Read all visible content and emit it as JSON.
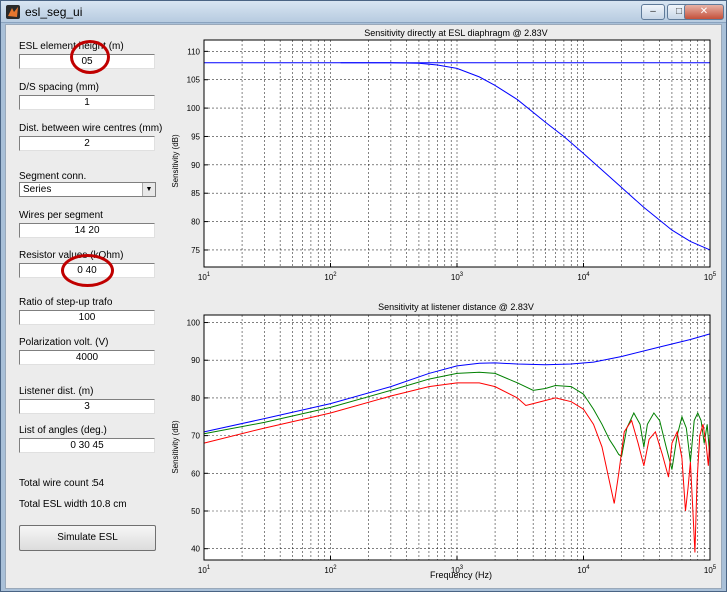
{
  "window": {
    "title": "esl_seg_ui",
    "buttons": [
      "minimize",
      "restore",
      "close"
    ]
  },
  "panel": {
    "fields": [
      {
        "key": "esl_height",
        "label": "ESL element height (m)",
        "value": "05"
      },
      {
        "key": "ds_spacing",
        "label": "D/S spacing (mm)",
        "value": "1"
      },
      {
        "key": "wire_dist",
        "label": "Dist. between wire centres (mm)",
        "value": "2"
      },
      {
        "key": "wires_per_segment",
        "label": "Wires per segment",
        "value": "14 20"
      },
      {
        "key": "resistor",
        "label": "Resistor values (kOhm)",
        "value": "0 40"
      },
      {
        "key": "trafo_ratio",
        "label": "Ratio of step-up trafo",
        "value": "100"
      },
      {
        "key": "polarization",
        "label": "Polarization volt. (V)",
        "value": "4000"
      },
      {
        "key": "listener_dist",
        "label": "Listener dist. (m)",
        "value": "3"
      },
      {
        "key": "angles",
        "label": "List of angles (deg.)",
        "value": "0 30 45"
      }
    ],
    "segment_conn": {
      "label": "Segment conn.",
      "selected": "Series"
    },
    "total_wire_count": {
      "label": "Total wire count :",
      "value": "54"
    },
    "total_esl_width": {
      "label": "Total ESL width :",
      "value": "10.8 cm"
    },
    "simulate_label": "Simulate ESL",
    "highlight_color": "#c00000"
  },
  "chart_data": [
    {
      "type": "line",
      "title": "Sensitivity directly at ESL diaphragm @ 2.83V",
      "xlabel": "",
      "ylabel": "Sensitivity (dB)",
      "xscale": "log",
      "xlim": [
        10,
        100000
      ],
      "ylim": [
        72,
        112
      ],
      "yticks": [
        75,
        80,
        85,
        90,
        95,
        100,
        105,
        110
      ],
      "xticks": [
        "10^1",
        "10^2",
        "10^3",
        "10^4",
        "10^5"
      ],
      "grid": true,
      "series": [
        {
          "color": "#0000ff",
          "points": [
            [
              10,
              108
            ],
            [
              100,
              108
            ],
            [
              1000,
              108
            ],
            [
              100000,
              108
            ]
          ]
        },
        {
          "color": "#0000ff",
          "points": [
            [
              120,
              108
            ],
            [
              300,
              108
            ],
            [
              500,
              107.9
            ],
            [
              700,
              107.6
            ],
            [
              1000,
              107
            ],
            [
              1500,
              105.5
            ],
            [
              2000,
              104
            ],
            [
              3000,
              101.5
            ],
            [
              5000,
              97.5
            ],
            [
              7000,
              95
            ],
            [
              10000,
              92
            ],
            [
              15000,
              88.5
            ],
            [
              20000,
              86
            ],
            [
              30000,
              82.5
            ],
            [
              50000,
              78.5
            ],
            [
              70000,
              76.5
            ],
            [
              100000,
              75
            ]
          ]
        }
      ]
    },
    {
      "type": "line",
      "title": "Sensitivity at listener distance @ 2.83V",
      "xlabel": "Frequency (Hz)",
      "ylabel": "Sensitivity (dB)",
      "xscale": "log",
      "xlim": [
        10,
        100000
      ],
      "ylim": [
        37,
        102
      ],
      "yticks": [
        40,
        50,
        60,
        70,
        80,
        90,
        100
      ],
      "xticks": [
        "10^1",
        "10^2",
        "10^3",
        "10^4",
        "10^5"
      ],
      "grid": true,
      "series": [
        {
          "color": "#0000ff",
          "points": [
            [
              10,
              71
            ],
            [
              30,
              74.5
            ],
            [
              100,
              78.5
            ],
            [
              300,
              83
            ],
            [
              600,
              86.5
            ],
            [
              1000,
              88.5
            ],
            [
              1500,
              89.2
            ],
            [
              2000,
              89.3
            ],
            [
              3000,
              89
            ],
            [
              5000,
              88.8
            ],
            [
              8000,
              89
            ],
            [
              12000,
              89.5
            ],
            [
              20000,
              91
            ],
            [
              40000,
              93.5
            ],
            [
              70000,
              95.5
            ],
            [
              100000,
              97
            ]
          ]
        },
        {
          "color": "#008000",
          "points": [
            [
              10,
              70.5
            ],
            [
              30,
              73.5
            ],
            [
              100,
              77.5
            ],
            [
              300,
              82
            ],
            [
              600,
              85
            ],
            [
              1000,
              86.5
            ],
            [
              1500,
              86.8
            ],
            [
              2000,
              86.5
            ],
            [
              3000,
              84
            ],
            [
              4000,
              82
            ],
            [
              5000,
              82.5
            ],
            [
              6000,
              83.3
            ],
            [
              8000,
              83
            ],
            [
              10000,
              81
            ],
            [
              12000,
              77
            ],
            [
              14000,
              73
            ],
            [
              16000,
              69
            ],
            [
              17500,
              67
            ],
            [
              19000,
              65
            ],
            [
              20000,
              64.5
            ],
            [
              22000,
              72
            ],
            [
              25000,
              76
            ],
            [
              28000,
              73
            ],
            [
              30000,
              67
            ],
            [
              32000,
              73
            ],
            [
              36000,
              76
            ],
            [
              40000,
              74
            ],
            [
              45000,
              67
            ],
            [
              50000,
              61
            ],
            [
              55000,
              70
            ],
            [
              60000,
              75
            ],
            [
              65000,
              72
            ],
            [
              70000,
              63
            ],
            [
              75000,
              74
            ],
            [
              80000,
              76
            ],
            [
              85000,
              74
            ],
            [
              90000,
              68
            ],
            [
              95000,
              73
            ],
            [
              100000,
              64
            ]
          ]
        },
        {
          "color": "#ff0000",
          "points": [
            [
              10,
              68
            ],
            [
              30,
              72
            ],
            [
              100,
              76
            ],
            [
              300,
              80.5
            ],
            [
              600,
              83
            ],
            [
              1000,
              84
            ],
            [
              1500,
              84
            ],
            [
              2000,
              83
            ],
            [
              3000,
              80
            ],
            [
              3500,
              78
            ],
            [
              4000,
              78.5
            ],
            [
              6000,
              80
            ],
            [
              8000,
              79
            ],
            [
              10000,
              77
            ],
            [
              12000,
              73
            ],
            [
              14000,
              67
            ],
            [
              16000,
              58
            ],
            [
              17500,
              52
            ],
            [
              19000,
              60
            ],
            [
              21000,
              71
            ],
            [
              24000,
              74
            ],
            [
              27000,
              68
            ],
            [
              30000,
              62
            ],
            [
              33000,
              69
            ],
            [
              37000,
              71
            ],
            [
              42000,
              65
            ],
            [
              47000,
              59
            ],
            [
              50000,
              68
            ],
            [
              55000,
              71
            ],
            [
              60000,
              64
            ],
            [
              64000,
              50
            ],
            [
              67000,
              56
            ],
            [
              70000,
              63
            ],
            [
              73000,
              51
            ],
            [
              76000,
              39
            ],
            [
              79000,
              58
            ],
            [
              83000,
              70
            ],
            [
              88000,
              73
            ],
            [
              93000,
              68
            ],
            [
              97000,
              62
            ],
            [
              100000,
              70
            ]
          ]
        }
      ]
    }
  ]
}
